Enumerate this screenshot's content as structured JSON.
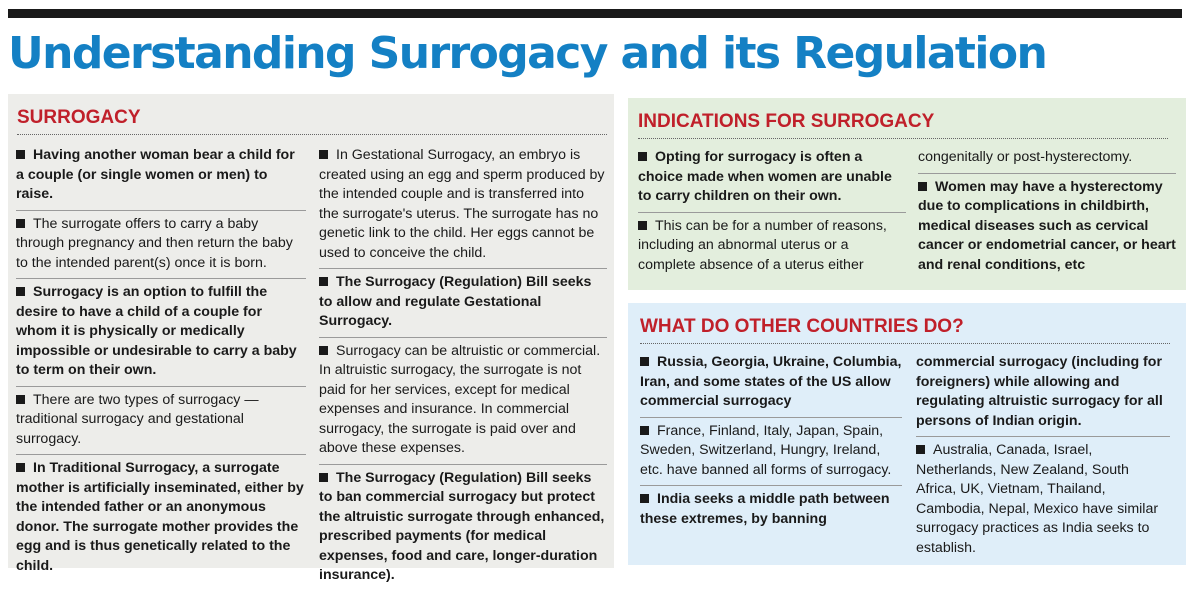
{
  "title": "Understanding Surrogacy and its Regulation",
  "accent_color": "#1480c4",
  "heading_color": "#c0202a",
  "surrogacy": {
    "heading": "SURROGACY",
    "col1": [
      {
        "text": "Having another woman bear a child for a couple (or single women or men) to raise."
      },
      {
        "text": "The surrogate offers to carry a baby through pregnancy and then return the baby to the intended parent(s) once it is born."
      },
      {
        "text": "Surrogacy is an option to fulfill the desire to have a child of a couple for whom it is physically or medically impossible or undesirable to carry a baby to term on their own."
      },
      {
        "text": "There are two types of surrogacy — traditional surrogacy and gestational surrogacy."
      },
      {
        "text": "In Traditional Surrogacy, a surrogate mother is artificially inseminated, either by the intended father or an anonymous donor. The surrogate mother provides the egg and is thus genetically related to the child."
      }
    ],
    "col2": [
      {
        "text": "In Gestational Surrogacy, an embryo is created using an egg and sperm produced by the intended couple and is transferred into the surrogate's uterus. The surrogate has no genetic link to the child. Her eggs cannot be used to conceive the child."
      },
      {
        "text": "The Surrogacy (Regulation) Bill seeks to allow and regulate Gestational Surrogacy."
      },
      {
        "text": "Surrogacy can be altruistic or commercial. In altruistic surrogacy, the surrogate is not paid for her services, except for medical expenses and insurance. In commercial surrogacy, the surrogate is paid over and above these expenses."
      },
      {
        "text": "The Surrogacy (Regulation) Bill seeks to ban commercial surrogacy but protect the altruistic surrogate through enhanced, prescribed payments (for medical expenses, food and care, longer-duration insurance)."
      }
    ]
  },
  "indications": {
    "heading": "INDICATIONS FOR SURROGACY",
    "col1": [
      {
        "text": "Opting for surrogacy is often a choice made when women are unable to carry children on their own."
      },
      {
        "text": "This can be for a number of reasons, including an abnormal uterus or a complete absence of a uterus either"
      }
    ],
    "col2": [
      {
        "text": "congenitally or post-hysterectomy."
      },
      {
        "text": "Women may have a hysterectomy due to complications in childbirth, medical diseases such as cervical cancer or endometrial cancer, or heart and renal conditions, etc"
      }
    ]
  },
  "countries": {
    "heading": "WHAT DO OTHER COUNTRIES DO?",
    "col1": [
      {
        "text": "Russia, Georgia, Ukraine, Columbia, Iran, and some states of the US allow commercial surrogacy"
      },
      {
        "text": "France, Finland, Italy, Japan, Spain, Sweden, Switzerland, Hungry, Ireland, etc. have banned all forms of surrogacy."
      },
      {
        "text": "India seeks a middle path between these extremes, by banning"
      }
    ],
    "col2": [
      {
        "text": "commercial surrogacy (including for foreigners) while allowing and regulating altruistic surrogacy for all persons of Indian origin."
      },
      {
        "text": "Australia, Canada, Israel, Netherlands, New Zealand, South Africa, UK, Vietnam, Thailand, Cambodia, Nepal, Mexico have similar surrogacy practices as India seeks to establish."
      }
    ]
  }
}
